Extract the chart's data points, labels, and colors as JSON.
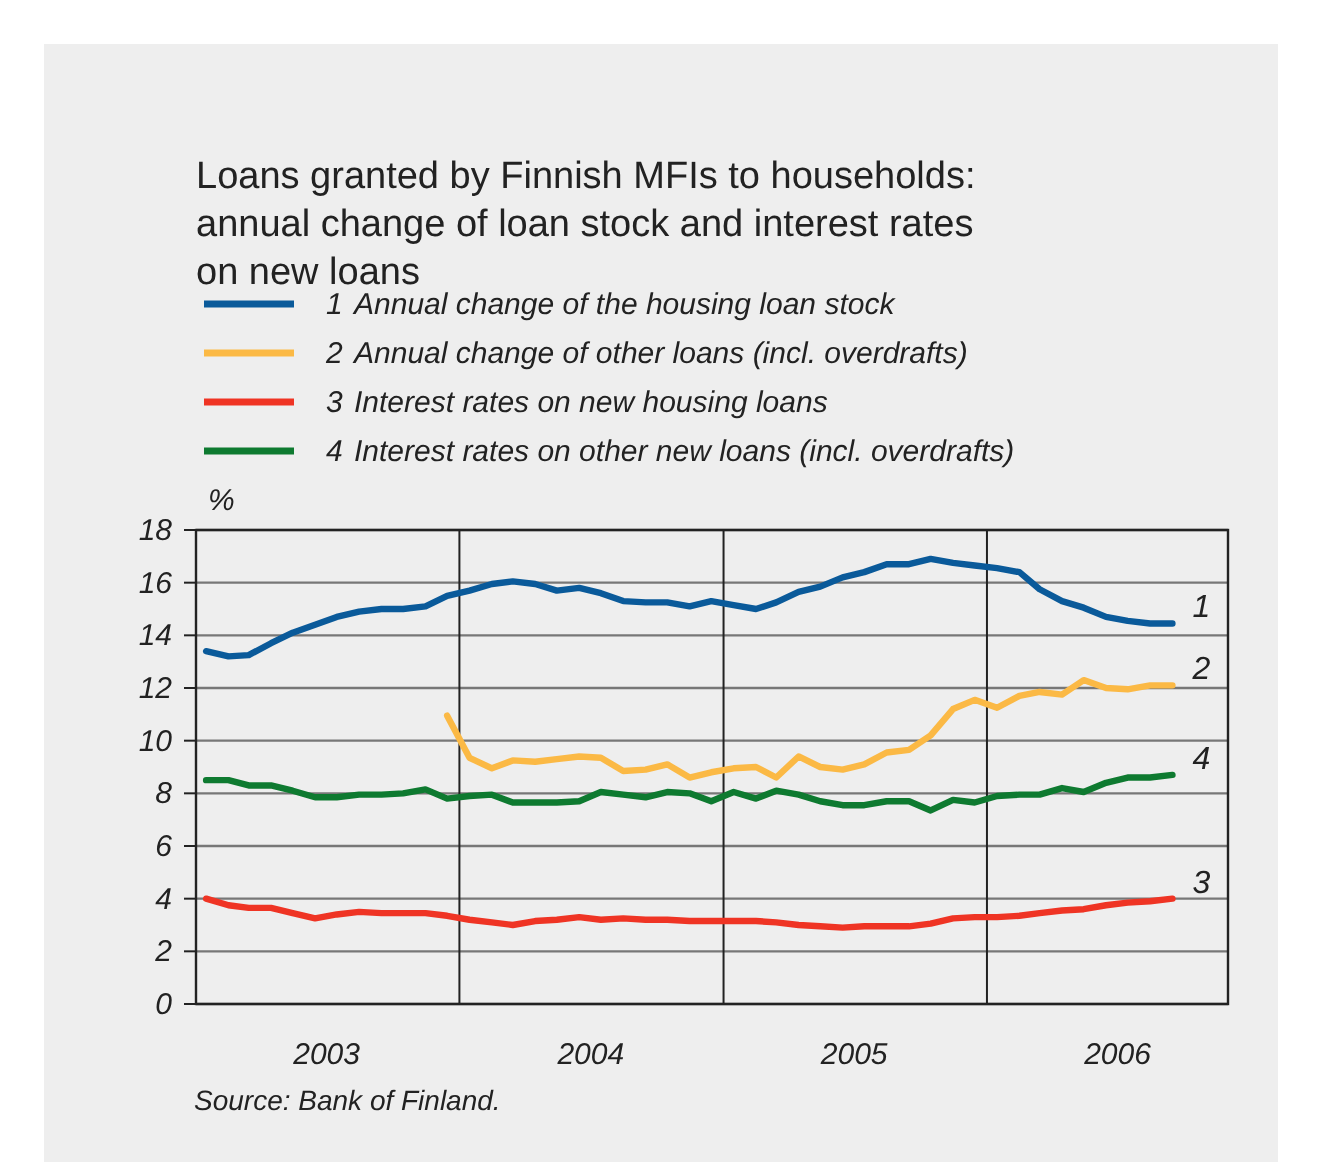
{
  "chart_data": {
    "type": "line",
    "title": "Loans granted by Finnish MFIs to households: annual change of loan stock and interest rates on new loans",
    "ylabel": "%",
    "x": [
      "2003-01-15",
      "2003-02-15",
      "2003-03-15",
      "2003-04-15",
      "2003-05-15",
      "2003-06-15",
      "2003-07-15",
      "2003-08-15",
      "2003-09-15",
      "2003-10-15",
      "2003-11-15",
      "2003-12-15",
      "2004-01-15",
      "2004-02-15",
      "2004-03-15",
      "2004-04-15",
      "2004-05-15",
      "2004-06-15",
      "2004-07-15",
      "2004-08-15",
      "2004-09-15",
      "2004-10-15",
      "2004-11-15",
      "2004-12-15",
      "2005-01-15",
      "2005-02-15",
      "2005-03-15",
      "2005-04-15",
      "2005-05-15",
      "2005-06-15",
      "2005-07-15",
      "2005-08-15",
      "2005-09-15",
      "2005-10-15",
      "2005-11-15",
      "2005-12-15",
      "2006-01-15",
      "2006-02-15",
      "2006-03-15",
      "2006-04-15",
      "2006-05-15",
      "2006-06-15",
      "2006-07-15",
      "2006-08-15",
      "2006-09-15"
    ],
    "series": [
      {
        "name": "1 Annual change of the housing loan stock",
        "color": "#0a5a9a",
        "values": [
          13.4,
          13.2,
          13.25,
          13.7,
          14.1,
          14.4,
          14.7,
          14.9,
          15.0,
          15.0,
          15.1,
          15.5,
          15.7,
          15.95,
          16.05,
          15.95,
          15.7,
          15.8,
          15.6,
          15.3,
          15.25,
          15.25,
          15.1,
          15.3,
          15.15,
          15.0,
          15.25,
          15.65,
          15.85,
          16.2,
          16.4,
          16.7,
          16.7,
          16.9,
          16.75,
          16.65,
          16.55,
          16.4,
          15.75,
          15.3,
          15.05,
          14.7,
          14.55,
          14.45,
          14.45
        ]
      },
      {
        "name": "2 Annual change of other loans (incl. overdrafts)",
        "color": "#fbb945",
        "values": [
          null,
          null,
          null,
          null,
          null,
          null,
          null,
          null,
          null,
          null,
          null,
          10.95,
          9.35,
          8.95,
          9.25,
          9.2,
          9.3,
          9.4,
          9.35,
          8.85,
          8.9,
          9.1,
          8.6,
          8.8,
          8.95,
          9.0,
          8.6,
          9.4,
          9.0,
          8.9,
          9.1,
          9.55,
          9.65,
          10.2,
          11.2,
          11.55,
          11.25,
          11.7,
          11.85,
          11.75,
          12.3,
          12.0,
          11.95,
          12.1,
          12.1
        ]
      },
      {
        "name": "3 Interest rates on new housing loans",
        "color": "#ef3424",
        "values": [
          4.0,
          3.75,
          3.65,
          3.65,
          3.45,
          3.25,
          3.4,
          3.5,
          3.45,
          3.45,
          3.45,
          3.35,
          3.2,
          3.1,
          3.0,
          3.15,
          3.2,
          3.3,
          3.2,
          3.25,
          3.2,
          3.2,
          3.15,
          3.15,
          3.15,
          3.15,
          3.1,
          3.0,
          2.95,
          2.9,
          2.95,
          2.95,
          2.95,
          3.05,
          3.25,
          3.3,
          3.3,
          3.35,
          3.45,
          3.55,
          3.6,
          3.75,
          3.85,
          3.9,
          4.0
        ]
      },
      {
        "name": "4 Interest rates on other new loans (incl. overdrafts)",
        "color": "#0e7a30",
        "values": [
          8.5,
          8.5,
          8.3,
          8.3,
          8.1,
          7.85,
          7.85,
          7.95,
          7.95,
          8.0,
          8.15,
          7.8,
          7.9,
          7.95,
          7.65,
          7.65,
          7.65,
          7.7,
          8.05,
          7.95,
          7.85,
          8.05,
          8.0,
          7.7,
          8.05,
          7.8,
          8.1,
          7.95,
          7.7,
          7.55,
          7.55,
          7.7,
          7.7,
          7.35,
          7.75,
          7.65,
          7.9,
          7.95,
          7.95,
          8.2,
          8.05,
          8.4,
          8.6,
          8.6,
          8.7
        ]
      }
    ],
    "xlim": [
      "2003-01-01",
      "2006-12-01"
    ],
    "xticks": [
      {
        "value": "2003-01-01",
        "label": null
      },
      {
        "value": "2003-07-01",
        "label": "2003"
      },
      {
        "value": "2004-01-01",
        "label": null
      },
      {
        "value": "2004-07-01",
        "label": "2004"
      },
      {
        "value": "2005-01-01",
        "label": null
      },
      {
        "value": "2005-07-01",
        "label": "2005"
      },
      {
        "value": "2006-01-01",
        "label": null
      },
      {
        "value": "2006-07-01",
        "label": "2006"
      }
    ],
    "ylim": [
      0,
      18
    ],
    "yticks": [
      0,
      2,
      4,
      6,
      8,
      10,
      12,
      14,
      16,
      18
    ],
    "grid": true,
    "legend": "top left",
    "marker": "none",
    "line_style": "solid",
    "annotations": [
      {
        "text": "1",
        "x": "2006-09-15",
        "y": 14.45
      },
      {
        "text": "2",
        "x": "2006-09-15",
        "y": 12.1
      },
      {
        "text": "3",
        "x": "2006-09-15",
        "y": 4.0
      },
      {
        "text": "4",
        "x": "2006-09-15",
        "y": 8.7
      },
      "Source: Bank of Finland."
    ]
  }
}
